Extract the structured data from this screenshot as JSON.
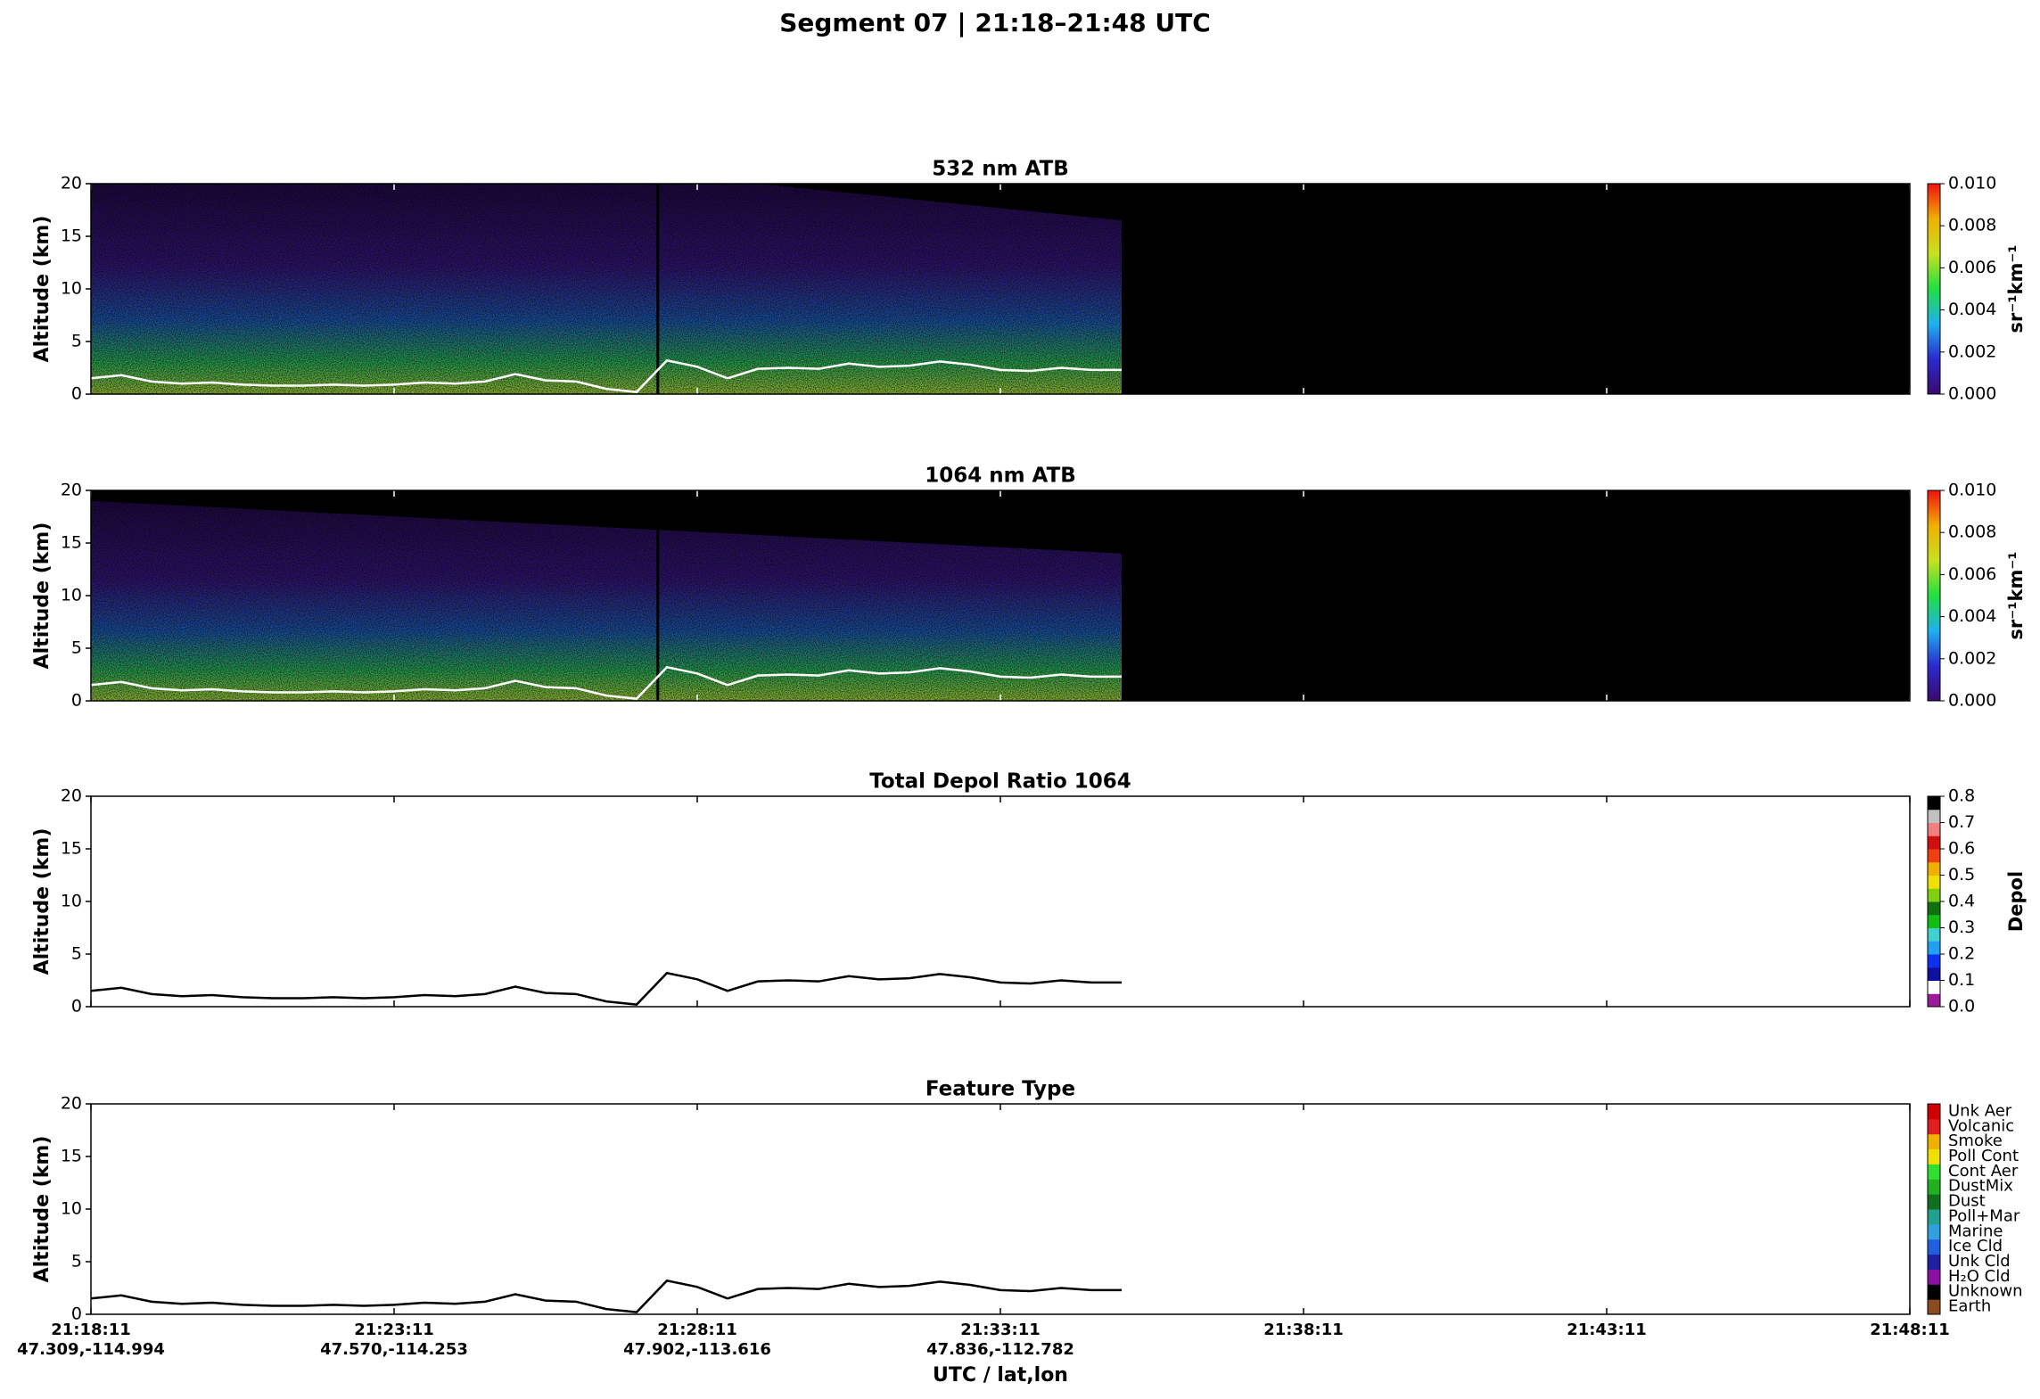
{
  "title": "Segment 07  |  21:18–21:48 UTC",
  "xlabel": "UTC / lat,lon",
  "xlim": [
    0,
    30
  ],
  "xticks": [
    {
      "value": 0,
      "label": "21:18:11"
    },
    {
      "value": 5,
      "label": "21:23:11"
    },
    {
      "value": 10,
      "label": "21:28:11"
    },
    {
      "value": 15,
      "label": "21:33:11"
    },
    {
      "value": 20,
      "label": "21:38:11"
    },
    {
      "value": 25,
      "label": "21:43:11"
    },
    {
      "value": 30,
      "label": "21:48:11"
    }
  ],
  "xtick_sublabels": [
    "47.309,-114.994",
    "47.570,-114.253",
    "47.902,-113.616",
    "47.836,-112.782",
    null,
    null,
    null
  ],
  "surface": {
    "x": [
      0,
      0.5,
      1,
      1.5,
      2,
      2.5,
      3,
      3.5,
      4,
      4.5,
      5,
      5.5,
      6,
      6.5,
      7,
      7.5,
      8,
      8.5,
      9,
      9.5,
      10,
      10.5,
      11,
      11.5,
      12,
      12.5,
      13,
      13.5,
      14,
      14.5,
      15,
      15.5,
      16,
      16.5,
      17
    ],
    "values": [
      1.5,
      1.8,
      1.2,
      1.0,
      1.1,
      0.9,
      0.8,
      0.8,
      0.9,
      0.8,
      0.9,
      1.1,
      1.0,
      1.2,
      1.9,
      1.3,
      1.2,
      0.5,
      0.2,
      3.2,
      2.6,
      1.5,
      2.4,
      2.5,
      2.4,
      2.9,
      2.6,
      2.7,
      3.1,
      2.8,
      2.3,
      2.2,
      2.5,
      2.3,
      2.3
    ]
  },
  "chart_data": [
    {
      "type": "atb",
      "title": "532 nm ATB",
      "ylabel": "Altitude (km)",
      "ylim": [
        0,
        20
      ],
      "yticks": [
        0,
        5,
        10,
        15,
        20
      ],
      "colorbar": {
        "label": "sr⁻¹km⁻¹",
        "lim": [
          0,
          0.01
        ],
        "ticks": [
          {
            "value": 0,
            "label": "0.000"
          },
          {
            "value": 0.002,
            "label": "0.002"
          },
          {
            "value": 0.004,
            "label": "0.004"
          },
          {
            "value": 0.006,
            "label": "0.006"
          },
          {
            "value": 0.008,
            "label": "0.008"
          },
          {
            "value": 0.01,
            "label": "0.010"
          }
        ],
        "colors": [
          "#3a0a6e",
          "#2a2ad0",
          "#1fb0f0",
          "#20e040",
          "#c8e020",
          "#f0b000",
          "#f01010"
        ]
      }
    },
    {
      "type": "atb",
      "title": "1064 nm ATB",
      "ylabel": "Altitude (km)",
      "ylim": [
        0,
        20
      ],
      "yticks": [
        0,
        5,
        10,
        15,
        20
      ],
      "colorbar": {
        "label": "sr⁻¹km⁻¹",
        "lim": [
          0,
          0.01
        ],
        "ticks": [
          {
            "value": 0,
            "label": "0.000"
          },
          {
            "value": 0.002,
            "label": "0.002"
          },
          {
            "value": 0.004,
            "label": "0.004"
          },
          {
            "value": 0.006,
            "label": "0.006"
          },
          {
            "value": 0.008,
            "label": "0.008"
          },
          {
            "value": 0.01,
            "label": "0.010"
          }
        ],
        "colors": [
          "#3a0a6e",
          "#2a2ad0",
          "#1fb0f0",
          "#20e040",
          "#c8e020",
          "#f0b000",
          "#f01010"
        ]
      }
    },
    {
      "type": "depol",
      "title": "Total Depol Ratio 1064",
      "ylabel": "Altitude (km)",
      "ylim": [
        0,
        20
      ],
      "yticks": [
        0,
        5,
        10,
        15,
        20
      ],
      "colorbar": {
        "label": "Depol",
        "lim": [
          0,
          0.8
        ],
        "ticks": [
          {
            "value": 0,
            "label": "0.0"
          },
          {
            "value": 0.1,
            "label": "0.1"
          },
          {
            "value": 0.2,
            "label": "0.2"
          },
          {
            "value": 0.3,
            "label": "0.3"
          },
          {
            "value": 0.4,
            "label": "0.4"
          },
          {
            "value": 0.5,
            "label": "0.5"
          },
          {
            "value": 0.6,
            "label": "0.6"
          },
          {
            "value": 0.7,
            "label": "0.7"
          },
          {
            "value": 0.8,
            "label": "0.8"
          }
        ],
        "colors": [
          "#9a1a9a",
          "#ffffff",
          "#1010a0",
          "#1030f0",
          "#20a0f0",
          "#40d0d0",
          "#10c010",
          "#107010",
          "#80d010",
          "#f0e000",
          "#f0b000",
          "#f04010",
          "#d01010",
          "#f08080",
          "#c0c0c0",
          "#000000"
        ]
      }
    },
    {
      "type": "feature",
      "title": "Feature Type",
      "ylabel": "Altitude (km)",
      "ylim": [
        0,
        20
      ],
      "yticks": [
        0,
        5,
        10,
        15,
        20
      ],
      "classes": [
        "Earth",
        "Unknown",
        "H₂O Cld",
        "Unk Cld",
        "Ice Cld",
        "Marine",
        "Poll+Mar",
        "Dust",
        "DustMix",
        "Cont Aer",
        "Poll Cont",
        "Smoke",
        "Volcanic",
        "Unk Aer"
      ],
      "class_colors": [
        "#8b4a20",
        "#000000",
        "#8a10a0",
        "#2020a0",
        "#2060e0",
        "#30a0e0",
        "#20a090",
        "#107020",
        "#20b020",
        "#30e030",
        "#f0e000",
        "#f0b000",
        "#e02020",
        "#d00000"
      ]
    }
  ]
}
